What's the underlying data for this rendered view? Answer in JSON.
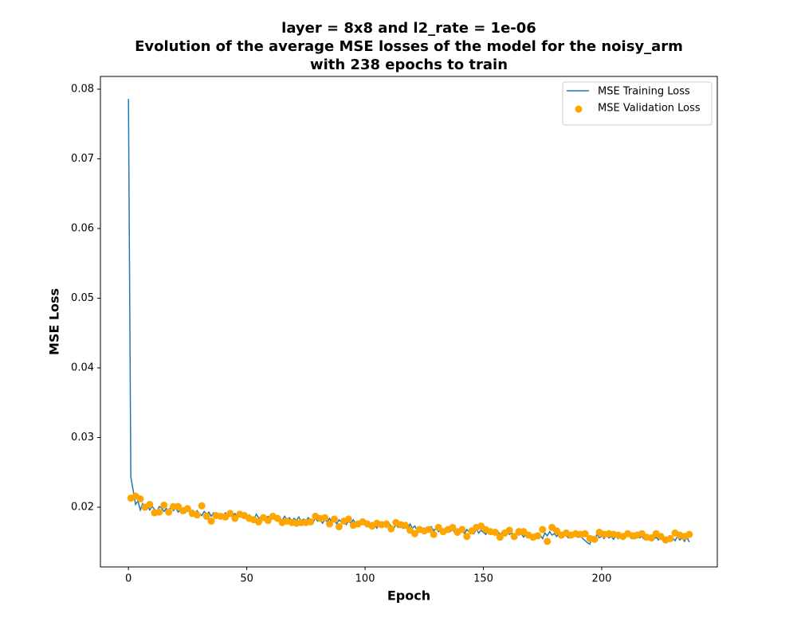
{
  "chart_data": {
    "type": "line",
    "title": [
      "layer = 8x8 and l2_rate = 1e-06",
      "Evolution of the average MSE losses of the model for the noisy_arm",
      "with 238 epochs to train"
    ],
    "xlabel": "Epoch",
    "ylabel": "MSE Loss",
    "xlim": [
      -11.85,
      248.85
    ],
    "ylim": [
      0.01143,
      0.08183
    ],
    "xticks": [
      0,
      50,
      100,
      150,
      200
    ],
    "yticks": [
      {
        "value": 0.02,
        "label": "0.02"
      },
      {
        "value": 0.03,
        "label": "0.03"
      },
      {
        "value": 0.04,
        "label": "0.04"
      },
      {
        "value": 0.05,
        "label": "0.05"
      },
      {
        "value": 0.06,
        "label": "0.06"
      },
      {
        "value": 0.07,
        "label": "0.07"
      },
      {
        "value": 0.08,
        "label": "0.08"
      }
    ],
    "legend": "upper right",
    "series": [
      {
        "name": "MSE Training Loss",
        "type": "line",
        "color": "#1f77b4",
        "x": [
          0,
          1,
          2,
          3,
          4,
          5,
          6,
          7,
          8,
          9,
          10,
          11,
          12,
          13,
          14,
          15,
          16,
          17,
          18,
          19,
          20,
          21,
          22,
          23,
          24,
          25,
          26,
          27,
          28,
          29,
          30,
          31,
          32,
          33,
          34,
          35,
          36,
          37,
          38,
          39,
          40,
          41,
          42,
          43,
          44,
          45,
          46,
          47,
          48,
          49,
          50,
          51,
          52,
          53,
          54,
          55,
          56,
          57,
          58,
          59,
          60,
          61,
          62,
          63,
          64,
          65,
          66,
          67,
          68,
          69,
          70,
          71,
          72,
          73,
          74,
          75,
          76,
          77,
          78,
          79,
          80,
          81,
          82,
          83,
          84,
          85,
          86,
          87,
          88,
          89,
          90,
          91,
          92,
          93,
          94,
          95,
          96,
          97,
          98,
          99,
          100,
          101,
          102,
          103,
          104,
          105,
          106,
          107,
          108,
          109,
          110,
          111,
          112,
          113,
          114,
          115,
          116,
          117,
          118,
          119,
          120,
          121,
          122,
          123,
          124,
          125,
          126,
          127,
          128,
          129,
          130,
          131,
          132,
          133,
          134,
          135,
          136,
          137,
          138,
          139,
          140,
          141,
          142,
          143,
          144,
          145,
          146,
          147,
          148,
          149,
          150,
          151,
          152,
          153,
          154,
          155,
          156,
          157,
          158,
          159,
          160,
          161,
          162,
          163,
          164,
          165,
          166,
          167,
          168,
          169,
          170,
          171,
          172,
          173,
          174,
          175,
          176,
          177,
          178,
          179,
          180,
          181,
          182,
          183,
          184,
          185,
          186,
          187,
          188,
          189,
          190,
          191,
          192,
          193,
          194,
          195,
          196,
          197,
          198,
          199,
          200,
          201,
          202,
          203,
          204,
          205,
          206,
          207,
          208,
          209,
          210,
          211,
          212,
          213,
          214,
          215,
          216,
          217,
          218,
          219,
          220,
          221,
          222,
          223,
          224,
          225,
          226,
          227,
          228,
          229,
          230,
          231,
          232,
          233,
          234,
          235,
          236,
          237
        ],
        "values": [
          0.0786,
          0.0243,
          0.0224,
          0.0204,
          0.0209,
          0.0196,
          0.0205,
          0.0197,
          0.0203,
          0.0196,
          0.0201,
          0.0197,
          0.0194,
          0.0201,
          0.0199,
          0.0194,
          0.0198,
          0.0196,
          0.02,
          0.0195,
          0.0199,
          0.0193,
          0.0197,
          0.0195,
          0.0192,
          0.0197,
          0.0193,
          0.0196,
          0.019,
          0.0195,
          0.0191,
          0.0188,
          0.0194,
          0.019,
          0.0193,
          0.0187,
          0.0192,
          0.0189,
          0.0186,
          0.0191,
          0.0188,
          0.0192,
          0.0186,
          0.019,
          0.0187,
          0.0191,
          0.0185,
          0.0189,
          0.0187,
          0.019,
          0.0184,
          0.0189,
          0.0186,
          0.0182,
          0.019,
          0.0185,
          0.0183,
          0.0188,
          0.0184,
          0.0187,
          0.0183,
          0.0188,
          0.0182,
          0.0186,
          0.0184,
          0.0181,
          0.0187,
          0.0182,
          0.0185,
          0.018,
          0.0184,
          0.0181,
          0.0186,
          0.0179,
          0.0183,
          0.018,
          0.0185,
          0.0181,
          0.0178,
          0.0184,
          0.018,
          0.0183,
          0.0177,
          0.0182,
          0.0179,
          0.0184,
          0.0178,
          0.0181,
          0.0176,
          0.0182,
          0.0178,
          0.0181,
          0.0175,
          0.018,
          0.0177,
          0.0182,
          0.0176,
          0.0179,
          0.0174,
          0.018,
          0.0176,
          0.0179,
          0.0173,
          0.0178,
          0.0175,
          0.017,
          0.0177,
          0.0172,
          0.0176,
          0.0171,
          0.0177,
          0.0173,
          0.0169,
          0.0175,
          0.0171,
          0.0176,
          0.017,
          0.0174,
          0.0168,
          0.0176,
          0.017,
          0.0173,
          0.0167,
          0.0172,
          0.0169,
          0.0166,
          0.0171,
          0.0167,
          0.0172,
          0.0166,
          0.017,
          0.0165,
          0.0169,
          0.0167,
          0.0164,
          0.017,
          0.0165,
          0.0168,
          0.0163,
          0.0169,
          0.0165,
          0.0167,
          0.0162,
          0.0168,
          0.0164,
          0.0166,
          0.0162,
          0.0169,
          0.0163,
          0.0167,
          0.0164,
          0.0161,
          0.0167,
          0.0162,
          0.0165,
          0.016,
          0.0166,
          0.0161,
          0.0164,
          0.0159,
          0.0165,
          0.0161,
          0.0163,
          0.0158,
          0.0164,
          0.016,
          0.0162,
          0.0157,
          0.0163,
          0.0159,
          0.0161,
          0.0156,
          0.0162,
          0.0158,
          0.016,
          0.0155,
          0.0163,
          0.0159,
          0.0165,
          0.016,
          0.0162,
          0.0158,
          0.0163,
          0.0157,
          0.0161,
          0.0159,
          0.0156,
          0.0162,
          0.0158,
          0.016,
          0.0157,
          0.0161,
          0.0155,
          0.0152,
          0.0149,
          0.0147,
          0.0158,
          0.0154,
          0.0161,
          0.0156,
          0.0159,
          0.0155,
          0.016,
          0.0156,
          0.0158,
          0.0154,
          0.0159,
          0.0155,
          0.0161,
          0.0156,
          0.0158,
          0.0162,
          0.0157,
          0.016,
          0.0155,
          0.0159,
          0.0156,
          0.0158,
          0.0154,
          0.0157,
          0.0155,
          0.0159,
          0.0154,
          0.0157,
          0.0153,
          0.0158,
          0.0155,
          0.0152,
          0.0157,
          0.0154,
          0.0156,
          0.0152,
          0.0158,
          0.0153,
          0.0156,
          0.0151,
          0.0157,
          0.015
        ]
      },
      {
        "name": "MSE Validation Loss",
        "type": "scatter",
        "color": "#ffa500",
        "x": [
          1,
          3,
          5,
          7,
          9,
          11,
          13,
          15,
          17,
          19,
          21,
          23,
          25,
          27,
          29,
          31,
          33,
          35,
          37,
          39,
          41,
          43,
          45,
          47,
          49,
          51,
          53,
          55,
          57,
          59,
          61,
          63,
          65,
          67,
          69,
          71,
          73,
          75,
          77,
          79,
          81,
          83,
          85,
          87,
          89,
          91,
          93,
          95,
          97,
          99,
          101,
          103,
          105,
          107,
          109,
          111,
          113,
          115,
          117,
          119,
          121,
          123,
          125,
          127,
          129,
          131,
          133,
          135,
          137,
          139,
          141,
          143,
          145,
          147,
          149,
          151,
          153,
          155,
          157,
          159,
          161,
          163,
          165,
          167,
          169,
          171,
          173,
          175,
          177,
          179,
          181,
          183,
          185,
          187,
          189,
          191,
          193,
          195,
          197,
          199,
          201,
          203,
          205,
          207,
          209,
          211,
          213,
          215,
          217,
          219,
          221,
          223,
          225,
          227,
          229,
          231,
          233,
          235,
          237
        ],
        "values": [
          0.0213,
          0.0216,
          0.0212,
          0.02,
          0.0204,
          0.0192,
          0.0193,
          0.0203,
          0.0193,
          0.0201,
          0.0201,
          0.0195,
          0.0198,
          0.0191,
          0.0189,
          0.0202,
          0.0187,
          0.018,
          0.0188,
          0.0187,
          0.0186,
          0.0191,
          0.0184,
          0.019,
          0.0188,
          0.0184,
          0.0182,
          0.0179,
          0.0185,
          0.0181,
          0.0187,
          0.0184,
          0.0178,
          0.018,
          0.0178,
          0.0177,
          0.0178,
          0.0178,
          0.0179,
          0.0187,
          0.0184,
          0.0185,
          0.0176,
          0.0183,
          0.0172,
          0.018,
          0.0183,
          0.0174,
          0.0176,
          0.0179,
          0.0176,
          0.0173,
          0.0177,
          0.0175,
          0.0176,
          0.0169,
          0.0178,
          0.0175,
          0.0174,
          0.0167,
          0.0162,
          0.0168,
          0.0166,
          0.0168,
          0.0161,
          0.0171,
          0.0165,
          0.0168,
          0.0171,
          0.0164,
          0.0168,
          0.0158,
          0.0166,
          0.0171,
          0.0173,
          0.0168,
          0.0165,
          0.0164,
          0.0157,
          0.0163,
          0.0167,
          0.0158,
          0.0165,
          0.0165,
          0.016,
          0.0157,
          0.0159,
          0.0168,
          0.0151,
          0.0171,
          0.0166,
          0.016,
          0.0163,
          0.016,
          0.0162,
          0.0161,
          0.0162,
          0.0155,
          0.0154,
          0.0164,
          0.0161,
          0.0162,
          0.0161,
          0.016,
          0.0158,
          0.0162,
          0.0159,
          0.016,
          0.0162,
          0.0157,
          0.0156,
          0.0162,
          0.0158,
          0.0153,
          0.0155,
          0.0163,
          0.016,
          0.0158,
          0.0161
        ]
      }
    ]
  }
}
